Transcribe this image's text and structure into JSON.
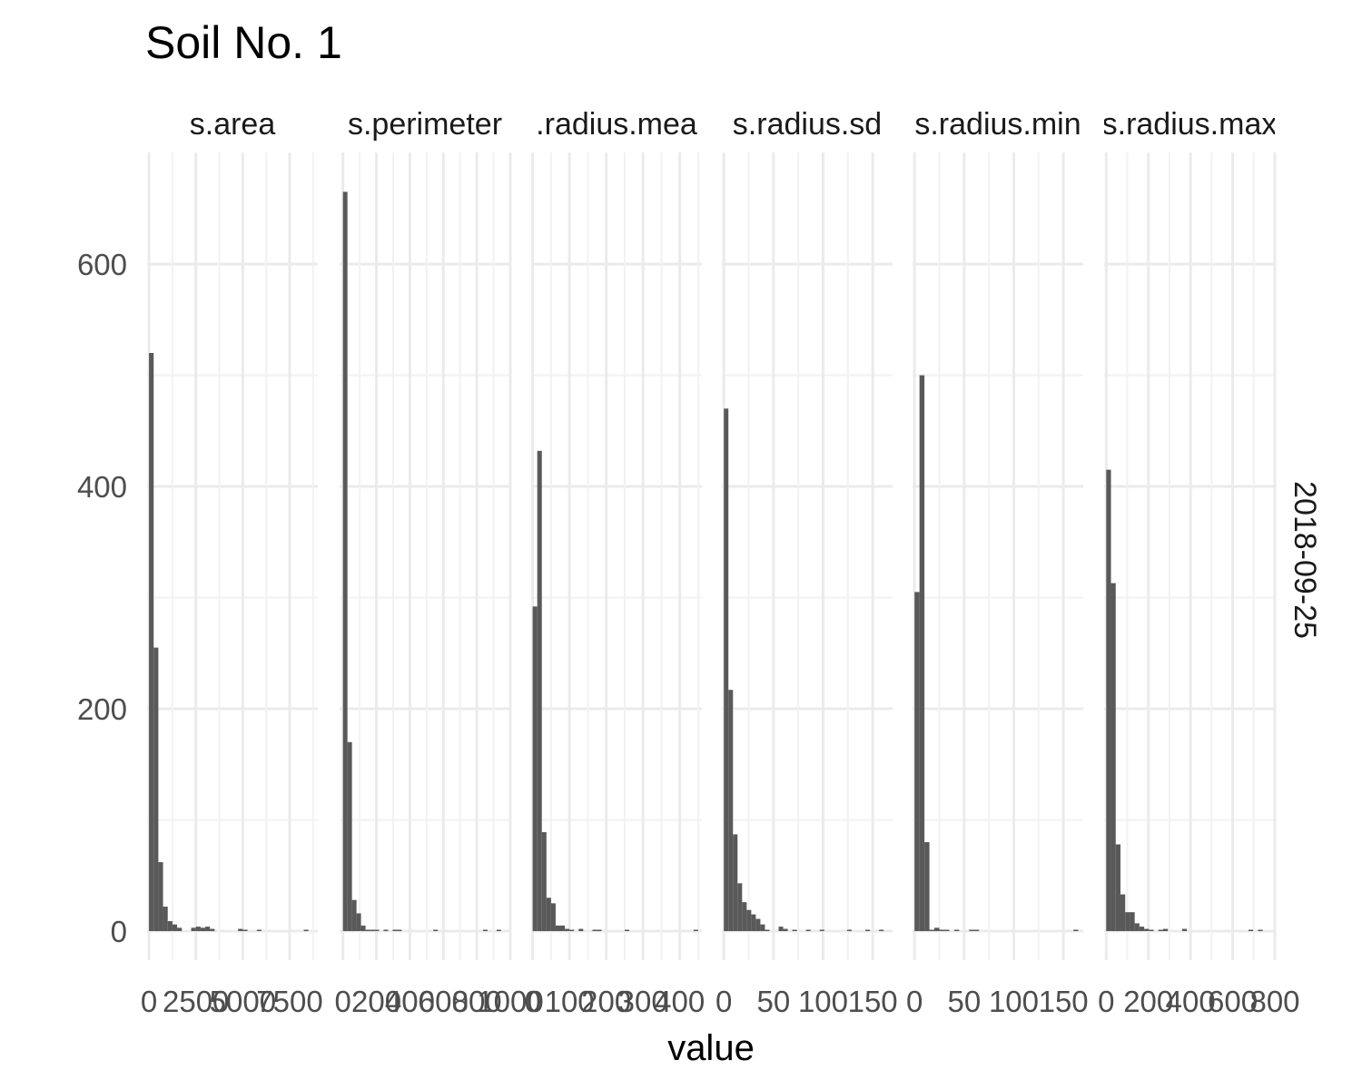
{
  "chart_data": {
    "type": "bar",
    "title": "Soil No. 1",
    "xlabel": "value",
    "ylabel": "",
    "ylim": [
      0,
      700
    ],
    "y_ticks": [
      0,
      200,
      400,
      600
    ],
    "row_strip": "2018-09-25",
    "grid": true,
    "colors": {
      "bar": "#595959",
      "grid": "#ebebeb"
    },
    "panels": [
      {
        "strip": "s.area",
        "xlim": [
          -100,
          9000
        ],
        "x_ticks": [
          0,
          2500,
          5000,
          7500
        ],
        "x_tick_labels": [
          "0",
          "2500",
          "5000",
          "7500"
        ],
        "bins": [
          {
            "x0": 0,
            "x1": 250,
            "count": 520
          },
          {
            "x0": 250,
            "x1": 500,
            "count": 255
          },
          {
            "x0": 500,
            "x1": 750,
            "count": 62
          },
          {
            "x0": 750,
            "x1": 1000,
            "count": 22
          },
          {
            "x0": 1000,
            "x1": 1250,
            "count": 9
          },
          {
            "x0": 1250,
            "x1": 1500,
            "count": 6
          },
          {
            "x0": 1500,
            "x1": 1750,
            "count": 3
          },
          {
            "x0": 2250,
            "x1": 2500,
            "count": 3
          },
          {
            "x0": 2500,
            "x1": 2750,
            "count": 4
          },
          {
            "x0": 2750,
            "x1": 3000,
            "count": 3
          },
          {
            "x0": 3000,
            "x1": 3250,
            "count": 4
          },
          {
            "x0": 3250,
            "x1": 3500,
            "count": 2
          },
          {
            "x0": 4750,
            "x1": 5000,
            "count": 2
          },
          {
            "x0": 5000,
            "x1": 5250,
            "count": 1
          },
          {
            "x0": 5750,
            "x1": 6000,
            "count": 1
          },
          {
            "x0": 8250,
            "x1": 8500,
            "count": 1
          }
        ]
      },
      {
        "strip": "s.perimeter",
        "xlim": [
          -20,
          1000
        ],
        "x_ticks": [
          0,
          200,
          400,
          600,
          800,
          1000
        ],
        "x_tick_labels": [
          "0",
          "200",
          "400",
          "600",
          "800",
          "1000"
        ],
        "bins": [
          {
            "x0": 0,
            "x1": 27,
            "count": 665
          },
          {
            "x0": 27,
            "x1": 54,
            "count": 170
          },
          {
            "x0": 54,
            "x1": 81,
            "count": 28
          },
          {
            "x0": 81,
            "x1": 108,
            "count": 16
          },
          {
            "x0": 108,
            "x1": 135,
            "count": 5
          },
          {
            "x0": 135,
            "x1": 162,
            "count": 1
          },
          {
            "x0": 162,
            "x1": 189,
            "count": 1
          },
          {
            "x0": 189,
            "x1": 216,
            "count": 1
          },
          {
            "x0": 243,
            "x1": 270,
            "count": 1
          },
          {
            "x0": 297,
            "x1": 324,
            "count": 1
          },
          {
            "x0": 324,
            "x1": 351,
            "count": 1
          },
          {
            "x0": 540,
            "x1": 567,
            "count": 1
          },
          {
            "x0": 837,
            "x1": 864,
            "count": 1
          },
          {
            "x0": 918,
            "x1": 945,
            "count": 1
          }
        ]
      },
      {
        "strip": ".radius.mea",
        "xlim": [
          -4,
          460
        ],
        "x_ticks": [
          0,
          100,
          200,
          300,
          400
        ],
        "x_tick_labels": [
          "0",
          "100",
          "200",
          "300",
          "400"
        ],
        "bins": [
          {
            "x0": 0,
            "x1": 12.5,
            "count": 292
          },
          {
            "x0": 12.5,
            "x1": 25,
            "count": 432
          },
          {
            "x0": 25,
            "x1": 37.5,
            "count": 89
          },
          {
            "x0": 37.5,
            "x1": 50,
            "count": 30
          },
          {
            "x0": 50,
            "x1": 62.5,
            "count": 25
          },
          {
            "x0": 62.5,
            "x1": 75,
            "count": 5
          },
          {
            "x0": 75,
            "x1": 87.5,
            "count": 5
          },
          {
            "x0": 87.5,
            "x1": 100,
            "count": 2
          },
          {
            "x0": 100,
            "x1": 112.5,
            "count": 1
          },
          {
            "x0": 125,
            "x1": 137.5,
            "count": 2
          },
          {
            "x0": 162.5,
            "x1": 175,
            "count": 1
          },
          {
            "x0": 175,
            "x1": 187.5,
            "count": 1
          },
          {
            "x0": 250,
            "x1": 262.5,
            "count": 1
          },
          {
            "x0": 437.5,
            "x1": 450,
            "count": 1
          }
        ]
      },
      {
        "strip": "s.radius.sd",
        "xlim": [
          -2,
          170
        ],
        "x_ticks": [
          0,
          50,
          100,
          150
        ],
        "x_tick_labels": [
          "0",
          "50",
          "100",
          "150"
        ],
        "bins": [
          {
            "x0": 0,
            "x1": 4.6,
            "count": 470
          },
          {
            "x0": 4.6,
            "x1": 9.2,
            "count": 217
          },
          {
            "x0": 9.2,
            "x1": 13.8,
            "count": 87
          },
          {
            "x0": 13.8,
            "x1": 18.4,
            "count": 43
          },
          {
            "x0": 18.4,
            "x1": 23,
            "count": 26
          },
          {
            "x0": 23,
            "x1": 27.6,
            "count": 19
          },
          {
            "x0": 27.6,
            "x1": 32.2,
            "count": 15
          },
          {
            "x0": 32.2,
            "x1": 36.8,
            "count": 11
          },
          {
            "x0": 36.8,
            "x1": 41.4,
            "count": 6
          },
          {
            "x0": 41.4,
            "x1": 46,
            "count": 1
          },
          {
            "x0": 55.2,
            "x1": 59.8,
            "count": 4
          },
          {
            "x0": 59.8,
            "x1": 64.4,
            "count": 2
          },
          {
            "x0": 69,
            "x1": 73.6,
            "count": 1
          },
          {
            "x0": 82.8,
            "x1": 87.4,
            "count": 1
          },
          {
            "x0": 96.6,
            "x1": 101.2,
            "count": 1
          },
          {
            "x0": 124.2,
            "x1": 128.8,
            "count": 1
          },
          {
            "x0": 142.6,
            "x1": 147.2,
            "count": 1
          },
          {
            "x0": 156.4,
            "x1": 161,
            "count": 1
          }
        ]
      },
      {
        "strip": "s.radius.min",
        "xlim": [
          -2,
          170
        ],
        "x_ticks": [
          0,
          50,
          100,
          150
        ],
        "x_tick_labels": [
          "0",
          "50",
          "100",
          "150"
        ],
        "bins": [
          {
            "x0": 0,
            "x1": 5,
            "count": 305
          },
          {
            "x0": 5,
            "x1": 10,
            "count": 500
          },
          {
            "x0": 10,
            "x1": 15,
            "count": 80
          },
          {
            "x0": 15,
            "x1": 20,
            "count": 1
          },
          {
            "x0": 20,
            "x1": 25,
            "count": 3
          },
          {
            "x0": 25,
            "x1": 30,
            "count": 1
          },
          {
            "x0": 30,
            "x1": 35,
            "count": 1
          },
          {
            "x0": 40,
            "x1": 45,
            "count": 1
          },
          {
            "x0": 55,
            "x1": 60,
            "count": 1
          },
          {
            "x0": 60,
            "x1": 65,
            "count": 1
          },
          {
            "x0": 160,
            "x1": 165,
            "count": 1
          }
        ]
      },
      {
        "strip": "s.radius.max",
        "xlim": [
          -10,
          800
        ],
        "x_ticks": [
          0,
          200,
          400,
          600,
          800
        ],
        "x_tick_labels": [
          "0",
          "200",
          "400",
          "600",
          "800"
        ],
        "bins": [
          {
            "x0": 0,
            "x1": 22.5,
            "count": 415
          },
          {
            "x0": 22.5,
            "x1": 45,
            "count": 313
          },
          {
            "x0": 45,
            "x1": 67.5,
            "count": 78
          },
          {
            "x0": 67.5,
            "x1": 90,
            "count": 33
          },
          {
            "x0": 90,
            "x1": 112.5,
            "count": 17
          },
          {
            "x0": 112.5,
            "x1": 135,
            "count": 17
          },
          {
            "x0": 135,
            "x1": 157.5,
            "count": 7
          },
          {
            "x0": 157.5,
            "x1": 180,
            "count": 4
          },
          {
            "x0": 180,
            "x1": 202.5,
            "count": 2
          },
          {
            "x0": 202.5,
            "x1": 225,
            "count": 1
          },
          {
            "x0": 247.5,
            "x1": 270,
            "count": 1
          },
          {
            "x0": 270,
            "x1": 292.5,
            "count": 2
          },
          {
            "x0": 360,
            "x1": 382.5,
            "count": 2
          },
          {
            "x0": 675,
            "x1": 697.5,
            "count": 1
          },
          {
            "x0": 720,
            "x1": 742.5,
            "count": 1
          }
        ]
      }
    ]
  }
}
